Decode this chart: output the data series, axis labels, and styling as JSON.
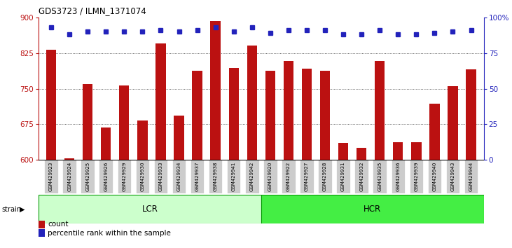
{
  "title": "GDS3723 / ILMN_1371074",
  "samples": [
    "GSM429923",
    "GSM429924",
    "GSM429925",
    "GSM429926",
    "GSM429929",
    "GSM429930",
    "GSM429933",
    "GSM429934",
    "GSM429937",
    "GSM429938",
    "GSM429941",
    "GSM429942",
    "GSM429920",
    "GSM429922",
    "GSM429927",
    "GSM429928",
    "GSM429931",
    "GSM429932",
    "GSM429935",
    "GSM429936",
    "GSM429939",
    "GSM429940",
    "GSM429943",
    "GSM429944"
  ],
  "counts": [
    832,
    604,
    760,
    669,
    757,
    683,
    845,
    693,
    787,
    893,
    793,
    840,
    787,
    808,
    792,
    787,
    636,
    625,
    808,
    637,
    638,
    718,
    755,
    790
  ],
  "percentile": [
    93,
    88,
    90,
    90,
    90,
    90,
    91,
    90,
    91,
    93,
    90,
    93,
    89,
    91,
    91,
    91,
    88,
    88,
    91,
    88,
    88,
    89,
    90,
    91
  ],
  "lcr_count": 12,
  "hcr_count": 12,
  "ylim_left": [
    600,
    900
  ],
  "ylim_right": [
    0,
    100
  ],
  "yticks_left": [
    600,
    675,
    750,
    825,
    900
  ],
  "yticks_right": [
    0,
    25,
    50,
    75,
    100
  ],
  "bar_color": "#bb1111",
  "dot_color": "#2222bb",
  "lcr_bg_color": "#ccffcc",
  "hcr_bg_color": "#44ee44",
  "label_bg_color": "#cccccc",
  "dotted_line_color": "#333333",
  "dotted_lines": [
    675,
    750,
    825
  ]
}
